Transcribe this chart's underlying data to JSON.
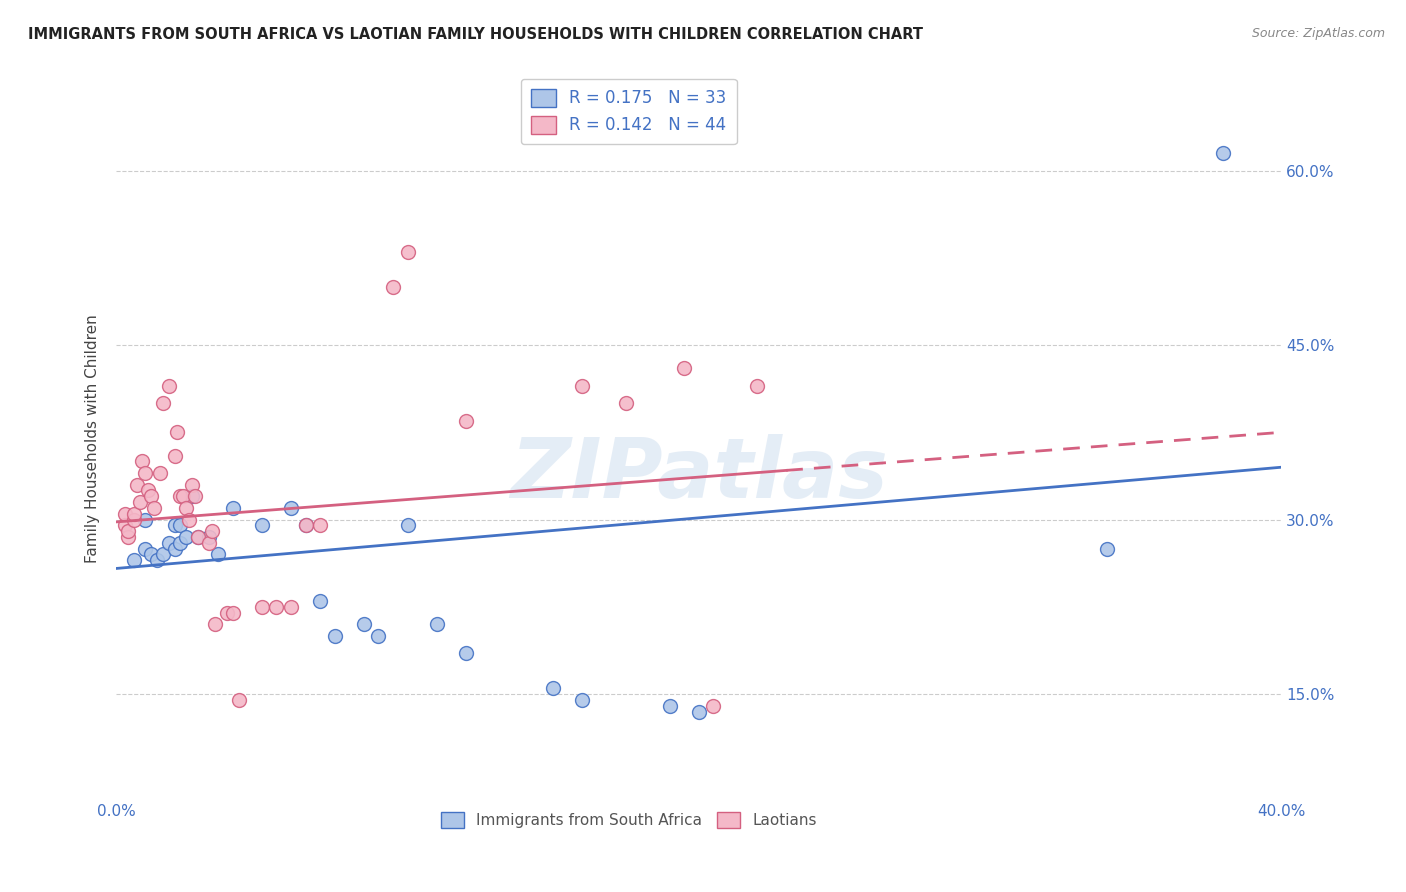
{
  "title": "IMMIGRANTS FROM SOUTH AFRICA VS LAOTIAN FAMILY HOUSEHOLDS WITH CHILDREN CORRELATION CHART",
  "source": "Source: ZipAtlas.com",
  "ylabel": "Family Households with Children",
  "ytick_labels": [
    "15.0%",
    "30.0%",
    "45.0%",
    "60.0%"
  ],
  "ytick_values": [
    0.15,
    0.3,
    0.45,
    0.6
  ],
  "xlim": [
    0.0,
    0.4
  ],
  "ylim": [
    0.06,
    0.68
  ],
  "legend_blue_r": "R = 0.175",
  "legend_blue_n": "N = 33",
  "legend_pink_r": "R = 0.142",
  "legend_pink_n": "N = 44",
  "blue_color": "#aec6e8",
  "pink_color": "#f4b8c8",
  "blue_line_color": "#4472C4",
  "pink_line_color": "#d46080",
  "background_color": "#ffffff",
  "watermark": "ZIPatlas",
  "blue_scatter_x": [
    0.006,
    0.01,
    0.01,
    0.012,
    0.014,
    0.016,
    0.018,
    0.02,
    0.02,
    0.022,
    0.022,
    0.024,
    0.026,
    0.028,
    0.032,
    0.035,
    0.04,
    0.05,
    0.06,
    0.065,
    0.07,
    0.075,
    0.085,
    0.09,
    0.1,
    0.11,
    0.12,
    0.15,
    0.16,
    0.19,
    0.2,
    0.34,
    0.38
  ],
  "blue_scatter_y": [
    0.265,
    0.275,
    0.3,
    0.27,
    0.265,
    0.27,
    0.28,
    0.275,
    0.295,
    0.295,
    0.28,
    0.285,
    0.32,
    0.285,
    0.285,
    0.27,
    0.31,
    0.295,
    0.31,
    0.295,
    0.23,
    0.2,
    0.21,
    0.2,
    0.295,
    0.21,
    0.185,
    0.155,
    0.145,
    0.14,
    0.135,
    0.275,
    0.615
  ],
  "pink_scatter_x": [
    0.003,
    0.003,
    0.004,
    0.004,
    0.006,
    0.006,
    0.007,
    0.008,
    0.009,
    0.01,
    0.011,
    0.012,
    0.013,
    0.015,
    0.016,
    0.018,
    0.02,
    0.021,
    0.022,
    0.023,
    0.024,
    0.025,
    0.026,
    0.027,
    0.028,
    0.032,
    0.033,
    0.034,
    0.038,
    0.04,
    0.042,
    0.05,
    0.055,
    0.06,
    0.065,
    0.07,
    0.095,
    0.1,
    0.12,
    0.16,
    0.175,
    0.195,
    0.205,
    0.22
  ],
  "pink_scatter_y": [
    0.295,
    0.305,
    0.285,
    0.29,
    0.3,
    0.305,
    0.33,
    0.315,
    0.35,
    0.34,
    0.325,
    0.32,
    0.31,
    0.34,
    0.4,
    0.415,
    0.355,
    0.375,
    0.32,
    0.32,
    0.31,
    0.3,
    0.33,
    0.32,
    0.285,
    0.28,
    0.29,
    0.21,
    0.22,
    0.22,
    0.145,
    0.225,
    0.225,
    0.225,
    0.295,
    0.295,
    0.5,
    0.53,
    0.385,
    0.415,
    0.4,
    0.43,
    0.14,
    0.415
  ],
  "blue_line_x": [
    0.0,
    0.4
  ],
  "blue_line_y": [
    0.258,
    0.345
  ],
  "pink_line_x": [
    0.0,
    0.4
  ],
  "pink_line_y": [
    0.298,
    0.375
  ],
  "pink_line_dashed_start": 0.23
}
